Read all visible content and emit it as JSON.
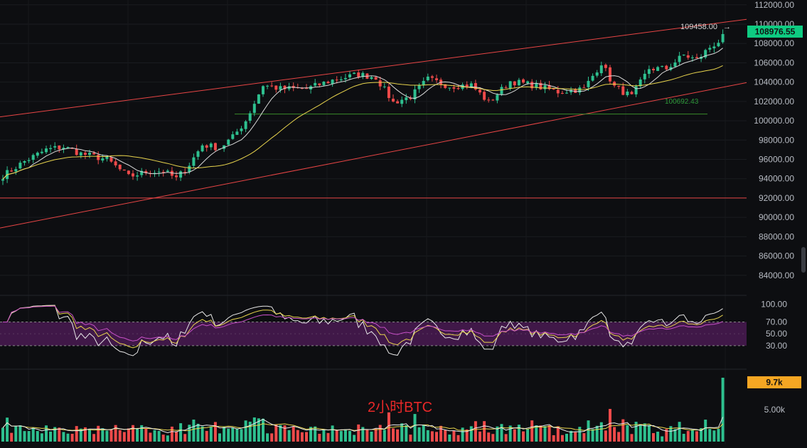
{
  "chart_data": {
    "type": "candlestick",
    "title": "",
    "caption": "2小时BTC",
    "price_axis": {
      "ylim": [
        82000,
        112500
      ],
      "ticks": [
        "112000.00",
        "110000.00",
        "108000.00",
        "106000.00",
        "104000.00",
        "102000.00",
        "100000.00",
        "98000.00",
        "96000.00",
        "94000.00",
        "92000.00",
        "90000.00",
        "88000.00",
        "86000.00",
        "84000.00"
      ]
    },
    "price_tags": {
      "last_price": "108976.55",
      "high_marker": "109458.00",
      "high_marker_arrow": "→",
      "support_label": "100692.43"
    },
    "horizontal_levels": {
      "support": 100692.43,
      "red_level": 92000
    },
    "trend_channel": {
      "upper_start": 100400,
      "upper_end": 110500,
      "lower_start": 88900,
      "lower_end": 103950
    },
    "price_path_keypoints": [
      [
        0,
        94300
      ],
      [
        5,
        95800
      ],
      [
        10,
        97000
      ],
      [
        14,
        97300
      ],
      [
        18,
        96600
      ],
      [
        24,
        96000
      ],
      [
        29,
        94200
      ],
      [
        33,
        94700
      ],
      [
        37,
        94800
      ],
      [
        40,
        94000
      ],
      [
        43,
        95500
      ],
      [
        46,
        97500
      ],
      [
        50,
        97200
      ],
      [
        53,
        98300
      ],
      [
        56,
        100000
      ],
      [
        60,
        103700
      ],
      [
        64,
        103300
      ],
      [
        70,
        103300
      ],
      [
        76,
        104200
      ],
      [
        82,
        104800
      ],
      [
        86,
        104500
      ],
      [
        90,
        101900
      ],
      [
        94,
        102500
      ],
      [
        98,
        104300
      ],
      [
        103,
        103600
      ],
      [
        108,
        103700
      ],
      [
        112,
        101900
      ],
      [
        117,
        104100
      ],
      [
        122,
        103700
      ],
      [
        128,
        103000
      ],
      [
        134,
        103300
      ],
      [
        138,
        106000
      ],
      [
        141,
        103500
      ],
      [
        145,
        102500
      ],
      [
        149,
        105400
      ],
      [
        153,
        105400
      ],
      [
        157,
        106800
      ],
      [
        160,
        106300
      ],
      [
        163,
        107600
      ],
      [
        165,
        108200
      ],
      [
        166,
        108976.55
      ]
    ],
    "candle_count": 167,
    "moving_averages": [
      {
        "color": "#d9d9d9",
        "period": 7
      },
      {
        "color": "#e8d44d",
        "period": 25
      }
    ],
    "rsi_panel": {
      "ylim": [
        0,
        110
      ],
      "ticks": [
        "100.00",
        "70.00",
        "50.00",
        "30.00"
      ],
      "overbought": 70,
      "oversold": 30,
      "band_color": "#4a1a52",
      "line_colors": [
        "#e8e8e8",
        "#e8d44d",
        "#c850c8"
      ]
    },
    "volume_panel": {
      "ticks": [
        "5.00k"
      ],
      "last_volume_tag": "9.7k",
      "last_volume": 9700,
      "ma_colors": [
        "#e8d44d",
        "#e8e8e8"
      ]
    },
    "colors": {
      "up": "#2ec08f",
      "down": "#ee4a4a",
      "channel": "#e84545",
      "support": "#3a8a2a",
      "support_text": "#2e9a3a",
      "tag_bg": "#0ecb81",
      "vol_tag_bg": "#f5a623"
    }
  }
}
